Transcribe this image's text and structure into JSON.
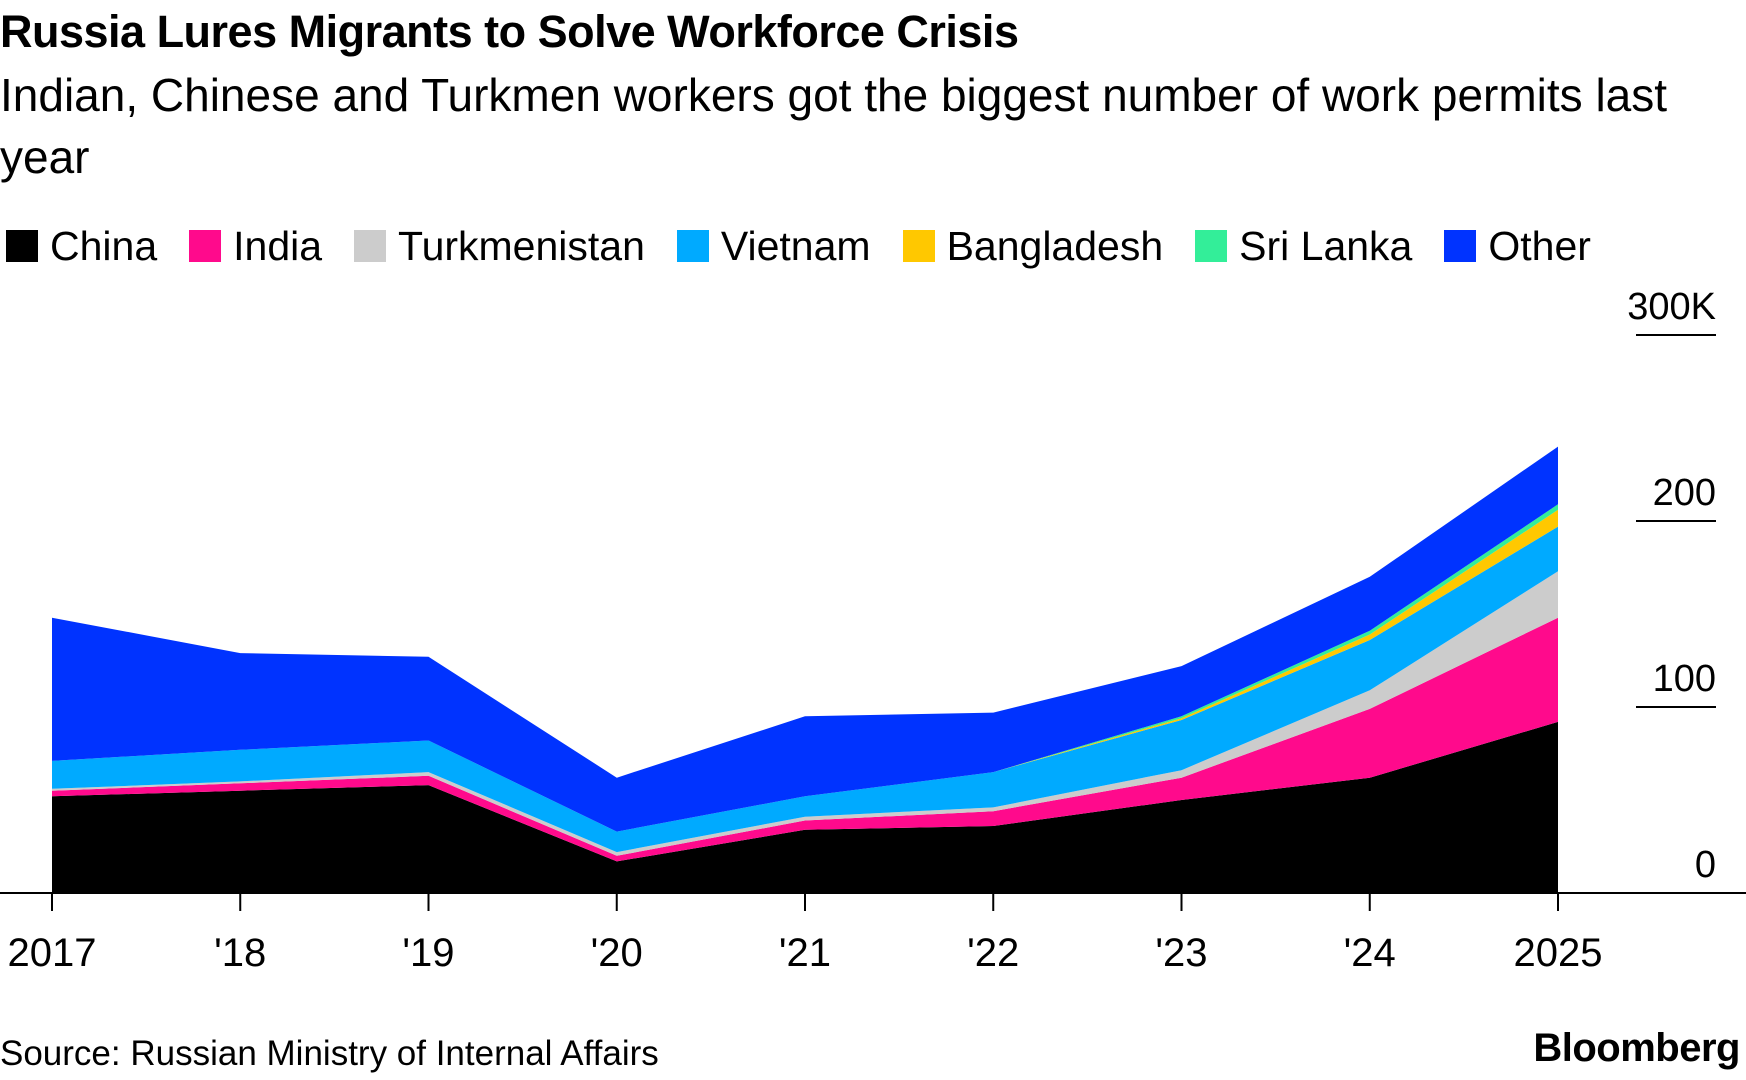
{
  "header": {
    "title": "Russia Lures Migrants to Solve Workforce Crisis",
    "subtitle": "Indian, Chinese and Turkmen workers got the biggest number of work permits last year"
  },
  "footer": {
    "source": "Source: Russian Ministry of Internal Affairs",
    "brand": "Bloomberg"
  },
  "chart_data": {
    "type": "area",
    "stacked": true,
    "categories": [
      "2017",
      "'18",
      "'19",
      "'20",
      "'21",
      "'22",
      "'23",
      "'24",
      "2025"
    ],
    "y_ticks": [
      "0",
      "100",
      "200",
      "300K"
    ],
    "ylim": [
      0,
      300
    ],
    "series": [
      {
        "name": "China",
        "color": "#000000",
        "values": [
          52,
          55,
          58,
          17,
          34,
          36,
          50,
          62,
          92
        ]
      },
      {
        "name": "India",
        "color": "#ff0a8c",
        "values": [
          3,
          4,
          5,
          3,
          5,
          8,
          12,
          37,
          56
        ]
      },
      {
        "name": "Turkmenistan",
        "color": "#cccccc",
        "values": [
          1,
          1,
          2,
          2,
          2,
          2,
          4,
          10,
          25
        ]
      },
      {
        "name": "Vietnam",
        "color": "#00aaff",
        "values": [
          15,
          17,
          17,
          11,
          11,
          19,
          27,
          27,
          24
        ]
      },
      {
        "name": "Bangladesh",
        "color": "#ffc800",
        "values": [
          0,
          0,
          0,
          0,
          0,
          0,
          1,
          3,
          9
        ]
      },
      {
        "name": "Sri Lanka",
        "color": "#33ee99",
        "values": [
          0,
          0,
          0,
          0,
          0,
          0,
          1,
          2,
          3
        ]
      },
      {
        "name": "Other",
        "color": "#0033ff",
        "values": [
          77,
          52,
          45,
          29,
          43,
          32,
          27,
          29,
          31
        ]
      }
    ]
  }
}
